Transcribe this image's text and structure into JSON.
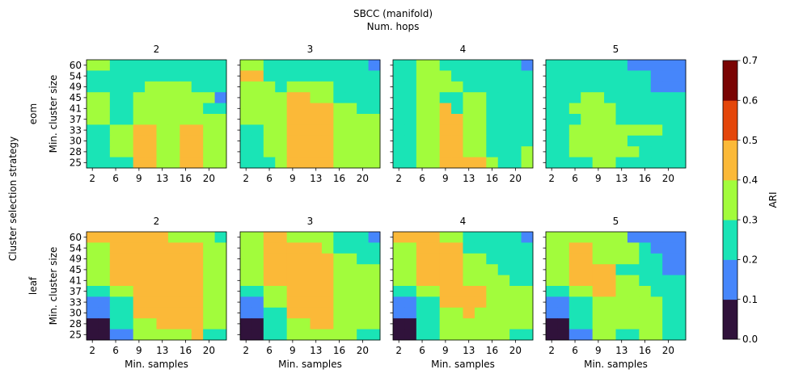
{
  "figure": {
    "title": "SBCC (manifold)",
    "subtitle": "Num. hops",
    "row_group_label": "Cluster selection strategy",
    "row_labels": [
      "eom",
      "leaf"
    ],
    "col_labels": [
      "2",
      "3",
      "4",
      "5"
    ],
    "xlabel": "Min. samples",
    "ylabel": "Min. cluster size"
  },
  "colorbar": {
    "label": "ARI",
    "ticks": [
      "0.0",
      "0.1",
      "0.2",
      "0.3",
      "0.4",
      "0.5",
      "0.6",
      "0.7"
    ],
    "colors": [
      "#30123b",
      "#4686fb",
      "#1ae4b6",
      "#a2fc3c",
      "#fbb938",
      "#e4460a",
      "#7a0403"
    ],
    "range": [
      0,
      0.7
    ]
  },
  "chart_data": {
    "type": "heatmap",
    "x": [
      "2",
      "6",
      "9",
      "13",
      "16",
      "20"
    ],
    "y": [
      "25",
      "28",
      "30",
      "33",
      "37",
      "41",
      "45",
      "49",
      "54",
      "60"
    ],
    "x_tick_labels": [
      "2",
      "6",
      "9",
      "13",
      "16",
      "20"
    ],
    "y_tick_labels": [
      "60",
      "54",
      "49",
      "45",
      "41",
      "37",
      "33",
      "30",
      "28",
      "25"
    ],
    "note": "values are color bins: 0=[0,0.1) 1=[0.1,0.2) 2=[0.2,0.3) 3=[0.3,0.4) 4=[0.4,0.5); x has 12 columns at min-samples 2..23, y rows listed top(60) to bottom(25)",
    "panels": [
      {
        "strategy": "eom",
        "hops": "2",
        "bins": [
          [
            3,
            3,
            2,
            2,
            2,
            2,
            2,
            2,
            2,
            2,
            2,
            2
          ],
          [
            2,
            2,
            2,
            2,
            2,
            2,
            2,
            2,
            2,
            2,
            2,
            2
          ],
          [
            2,
            2,
            2,
            2,
            2,
            3,
            3,
            3,
            3,
            2,
            2,
            2
          ],
          [
            3,
            3,
            2,
            2,
            3,
            3,
            3,
            3,
            3,
            3,
            3,
            1
          ],
          [
            3,
            3,
            2,
            2,
            3,
            3,
            3,
            3,
            3,
            3,
            2,
            2
          ],
          [
            3,
            3,
            2,
            2,
            3,
            3,
            3,
            3,
            3,
            3,
            3,
            3
          ],
          [
            2,
            2,
            3,
            3,
            4,
            4,
            3,
            3,
            4,
            4,
            3,
            3
          ],
          [
            2,
            2,
            3,
            3,
            4,
            4,
            3,
            3,
            4,
            4,
            3,
            3
          ],
          [
            2,
            2,
            3,
            3,
            4,
            4,
            3,
            3,
            4,
            4,
            3,
            3
          ],
          [
            2,
            2,
            2,
            2,
            4,
            4,
            3,
            3,
            4,
            4,
            3,
            3
          ]
        ]
      },
      {
        "strategy": "eom",
        "hops": "3",
        "bins": [
          [
            3,
            3,
            2,
            2,
            2,
            2,
            2,
            2,
            2,
            2,
            2,
            1
          ],
          [
            4,
            4,
            2,
            2,
            2,
            2,
            2,
            2,
            2,
            2,
            2,
            2
          ],
          [
            3,
            3,
            3,
            2,
            3,
            3,
            3,
            3,
            2,
            2,
            2,
            2
          ],
          [
            3,
            3,
            3,
            3,
            4,
            4,
            3,
            3,
            2,
            2,
            2,
            2
          ],
          [
            3,
            3,
            3,
            3,
            4,
            4,
            4,
            4,
            3,
            3,
            2,
            2
          ],
          [
            3,
            3,
            3,
            3,
            4,
            4,
            4,
            4,
            3,
            3,
            3,
            3
          ],
          [
            2,
            2,
            3,
            3,
            4,
            4,
            4,
            4,
            3,
            3,
            3,
            3
          ],
          [
            2,
            2,
            3,
            3,
            4,
            4,
            4,
            4,
            3,
            3,
            3,
            3
          ],
          [
            2,
            2,
            3,
            3,
            4,
            4,
            4,
            4,
            3,
            3,
            3,
            3
          ],
          [
            2,
            2,
            2,
            3,
            4,
            4,
            4,
            4,
            3,
            3,
            3,
            3
          ]
        ]
      },
      {
        "strategy": "eom",
        "hops": "4",
        "bins": [
          [
            2,
            2,
            3,
            3,
            2,
            2,
            2,
            2,
            2,
            2,
            2,
            1
          ],
          [
            2,
            2,
            3,
            3,
            3,
            2,
            2,
            2,
            2,
            2,
            2,
            2
          ],
          [
            2,
            2,
            3,
            3,
            3,
            3,
            2,
            2,
            2,
            2,
            2,
            2
          ],
          [
            2,
            2,
            3,
            3,
            2,
            2,
            3,
            3,
            2,
            2,
            2,
            2
          ],
          [
            2,
            2,
            3,
            3,
            4,
            2,
            3,
            3,
            2,
            2,
            2,
            2
          ],
          [
            2,
            2,
            3,
            3,
            4,
            4,
            3,
            3,
            2,
            2,
            2,
            2
          ],
          [
            2,
            2,
            3,
            3,
            4,
            4,
            3,
            3,
            2,
            2,
            2,
            2
          ],
          [
            2,
            2,
            3,
            3,
            4,
            4,
            3,
            3,
            2,
            2,
            2,
            2
          ],
          [
            2,
            2,
            3,
            3,
            4,
            4,
            3,
            3,
            2,
            2,
            2,
            3
          ],
          [
            2,
            2,
            3,
            3,
            4,
            4,
            4,
            4,
            3,
            2,
            2,
            3
          ]
        ]
      },
      {
        "strategy": "eom",
        "hops": "5",
        "bins": [
          [
            2,
            2,
            2,
            2,
            2,
            2,
            2,
            1,
            1,
            1,
            1,
            1
          ],
          [
            2,
            2,
            2,
            2,
            2,
            2,
            2,
            2,
            2,
            1,
            1,
            1
          ],
          [
            2,
            2,
            2,
            2,
            2,
            2,
            2,
            2,
            2,
            1,
            1,
            1
          ],
          [
            2,
            2,
            2,
            3,
            3,
            2,
            2,
            2,
            2,
            2,
            2,
            2
          ],
          [
            2,
            2,
            3,
            3,
            3,
            3,
            2,
            2,
            2,
            2,
            2,
            2
          ],
          [
            2,
            2,
            2,
            3,
            3,
            3,
            2,
            2,
            2,
            2,
            2,
            2
          ],
          [
            2,
            2,
            3,
            3,
            3,
            3,
            3,
            3,
            3,
            3,
            2,
            2
          ],
          [
            2,
            2,
            3,
            3,
            3,
            3,
            3,
            2,
            2,
            2,
            2,
            2
          ],
          [
            2,
            2,
            3,
            3,
            3,
            3,
            3,
            3,
            2,
            2,
            2,
            2
          ],
          [
            2,
            2,
            2,
            2,
            3,
            3,
            2,
            2,
            2,
            2,
            2,
            2
          ]
        ]
      },
      {
        "strategy": "leaf",
        "hops": "2",
        "bins": [
          [
            4,
            4,
            4,
            4,
            4,
            4,
            4,
            3,
            3,
            3,
            3,
            2
          ],
          [
            3,
            3,
            4,
            4,
            4,
            4,
            4,
            4,
            4,
            4,
            3,
            3
          ],
          [
            3,
            3,
            4,
            4,
            4,
            4,
            4,
            4,
            4,
            4,
            3,
            3
          ],
          [
            3,
            3,
            4,
            4,
            4,
            4,
            4,
            4,
            4,
            4,
            3,
            3
          ],
          [
            3,
            3,
            4,
            4,
            4,
            4,
            4,
            4,
            4,
            4,
            3,
            3
          ],
          [
            2,
            2,
            3,
            3,
            4,
            4,
            4,
            4,
            4,
            4,
            3,
            3
          ],
          [
            1,
            1,
            2,
            2,
            4,
            4,
            4,
            4,
            4,
            4,
            3,
            3
          ],
          [
            1,
            1,
            2,
            2,
            4,
            4,
            4,
            4,
            4,
            4,
            3,
            3
          ],
          [
            0,
            0,
            2,
            2,
            3,
            3,
            4,
            4,
            4,
            4,
            3,
            3
          ],
          [
            0,
            0,
            1,
            1,
            3,
            3,
            3,
            3,
            3,
            4,
            2,
            2
          ]
        ]
      },
      {
        "strategy": "leaf",
        "hops": "3",
        "bins": [
          [
            3,
            3,
            4,
            4,
            3,
            3,
            3,
            3,
            2,
            2,
            2,
            1
          ],
          [
            3,
            3,
            4,
            4,
            4,
            4,
            4,
            3,
            2,
            2,
            2,
            2
          ],
          [
            3,
            3,
            4,
            4,
            4,
            4,
            4,
            4,
            3,
            3,
            2,
            2
          ],
          [
            3,
            3,
            4,
            4,
            4,
            4,
            4,
            4,
            3,
            3,
            3,
            3
          ],
          [
            3,
            3,
            4,
            4,
            4,
            4,
            4,
            4,
            3,
            3,
            3,
            3
          ],
          [
            2,
            2,
            3,
            3,
            4,
            4,
            4,
            4,
            3,
            3,
            3,
            3
          ],
          [
            1,
            1,
            3,
            3,
            4,
            4,
            4,
            4,
            3,
            3,
            3,
            3
          ],
          [
            1,
            1,
            2,
            2,
            4,
            4,
            4,
            4,
            3,
            3,
            3,
            3
          ],
          [
            0,
            0,
            2,
            2,
            3,
            3,
            4,
            4,
            3,
            3,
            3,
            3
          ],
          [
            0,
            0,
            2,
            2,
            3,
            3,
            3,
            3,
            3,
            3,
            2,
            2
          ]
        ]
      },
      {
        "strategy": "leaf",
        "hops": "4",
        "bins": [
          [
            4,
            4,
            4,
            4,
            3,
            3,
            2,
            2,
            2,
            2,
            2,
            1
          ],
          [
            3,
            3,
            4,
            4,
            4,
            4,
            2,
            2,
            2,
            2,
            2,
            2
          ],
          [
            3,
            3,
            4,
            4,
            4,
            4,
            3,
            3,
            2,
            2,
            2,
            2
          ],
          [
            3,
            3,
            4,
            4,
            4,
            4,
            3,
            3,
            3,
            2,
            2,
            2
          ],
          [
            3,
            3,
            4,
            4,
            4,
            4,
            3,
            3,
            3,
            3,
            2,
            2
          ],
          [
            2,
            2,
            3,
            3,
            4,
            4,
            4,
            4,
            3,
            3,
            3,
            3
          ],
          [
            1,
            1,
            2,
            2,
            4,
            4,
            4,
            4,
            3,
            3,
            3,
            3
          ],
          [
            1,
            1,
            2,
            2,
            3,
            3,
            4,
            3,
            3,
            3,
            3,
            3
          ],
          [
            0,
            0,
            2,
            2,
            3,
            3,
            3,
            3,
            3,
            3,
            3,
            3
          ],
          [
            0,
            0,
            2,
            2,
            3,
            3,
            3,
            3,
            3,
            3,
            2,
            2
          ]
        ]
      },
      {
        "strategy": "leaf",
        "hops": "5",
        "bins": [
          [
            3,
            3,
            3,
            3,
            3,
            3,
            3,
            1,
            1,
            1,
            1,
            1
          ],
          [
            3,
            3,
            4,
            4,
            3,
            3,
            3,
            3,
            2,
            1,
            1,
            1
          ],
          [
            3,
            3,
            4,
            4,
            3,
            3,
            3,
            3,
            2,
            2,
            1,
            1
          ],
          [
            3,
            3,
            4,
            4,
            4,
            4,
            2,
            2,
            2,
            2,
            1,
            1
          ],
          [
            3,
            3,
            4,
            4,
            4,
            4,
            3,
            3,
            2,
            2,
            2,
            2
          ],
          [
            2,
            2,
            3,
            3,
            4,
            4,
            3,
            3,
            3,
            2,
            2,
            2
          ],
          [
            1,
            1,
            2,
            2,
            3,
            3,
            3,
            3,
            3,
            3,
            2,
            2
          ],
          [
            1,
            1,
            2,
            2,
            3,
            3,
            3,
            3,
            3,
            3,
            2,
            2
          ],
          [
            0,
            0,
            2,
            2,
            3,
            3,
            3,
            3,
            3,
            3,
            2,
            2
          ],
          [
            0,
            0,
            1,
            1,
            3,
            3,
            2,
            2,
            3,
            3,
            2,
            2
          ]
        ]
      }
    ]
  }
}
